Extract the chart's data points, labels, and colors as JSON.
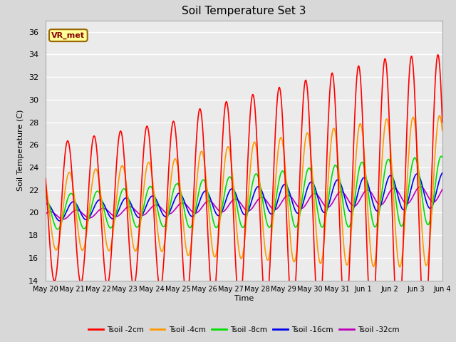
{
  "title": "Soil Temperature Set 3",
  "xlabel": "Time",
  "ylabel": "Soil Temperature (C)",
  "ylim": [
    14,
    37
  ],
  "yticks": [
    14,
    16,
    18,
    20,
    22,
    24,
    26,
    28,
    30,
    32,
    34,
    36
  ],
  "colors": {
    "Tsoil -2cm": "#ff0000",
    "Tsoil -4cm": "#ff9900",
    "Tsoil -8cm": "#00dd00",
    "Tsoil -16cm": "#0000ee",
    "Tsoil -32cm": "#bb00bb"
  },
  "background_color": "#d8d8d8",
  "plot_bg_color": "#ebebeb",
  "grid_color": "#ffffff",
  "annotation_text": "VR_met",
  "annotation_bg": "#ffff99",
  "annotation_border": "#996600",
  "tick_labels": [
    "May 20",
    "May 21",
    "May 22",
    "May 23",
    "May 24",
    "May 25",
    "May 26",
    "May 27",
    "May 28",
    "May 29",
    "May 30",
    "May 31",
    "Jun 1",
    "Jun 2",
    "Jun 3",
    "Jun 4"
  ],
  "tick_positions": [
    0,
    1,
    2,
    3,
    4,
    5,
    6,
    7,
    8,
    9,
    10,
    11,
    12,
    13,
    14,
    15
  ]
}
